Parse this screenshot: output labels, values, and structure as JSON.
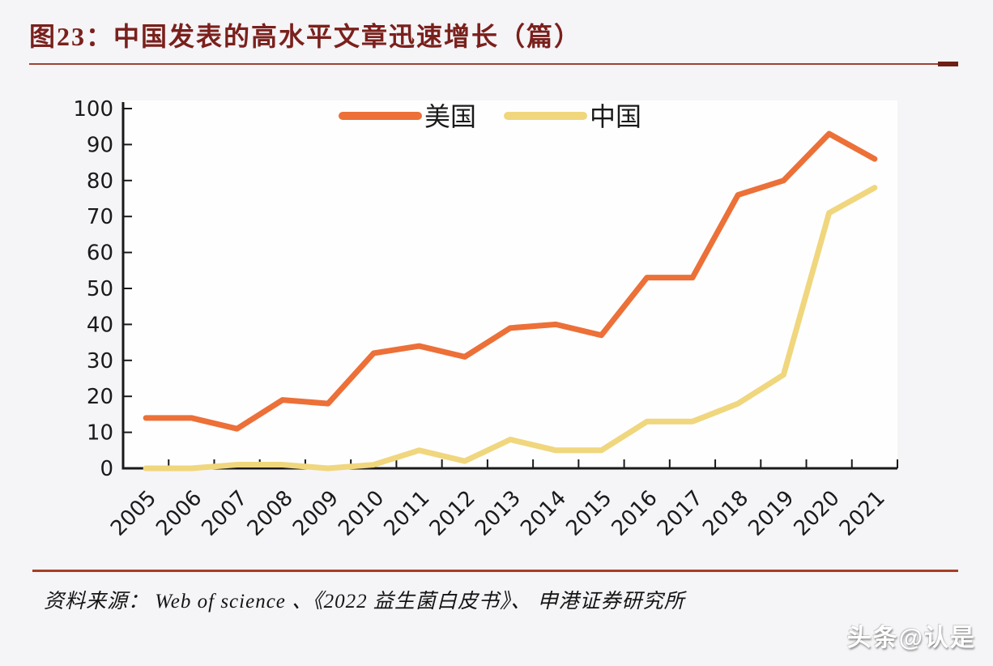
{
  "title": "图23：中国发表的高水平文章迅速增长（篇）",
  "source_note": "资料来源： Web of science 、《2022 益生菌白皮书》、 申港证券研究所",
  "watermark": "头条@认是",
  "colors": {
    "title_text": "#7A201C",
    "top_rule": "#9A4433",
    "top_rule_end": "#6F1F15",
    "bottom_rule": "#A73E22",
    "axis": "#1A1A1A",
    "page_bg": "#F5F4F7",
    "plot_bg": "#FEFEFE",
    "usa_line": "#EC7038",
    "china_line": "#F0D67D"
  },
  "chart_data": {
    "type": "line",
    "title": "图23：中国发表的高水平文章迅速增长（篇）",
    "categories": [
      "2005",
      "2006",
      "2007",
      "2008",
      "2009",
      "2010",
      "2011",
      "2012",
      "2013",
      "2014",
      "2015",
      "2016",
      "2017",
      "2018",
      "2019",
      "2020",
      "2021"
    ],
    "series": [
      {
        "name": "美国",
        "color": "#EC7038",
        "values": [
          14,
          14,
          11,
          19,
          18,
          32,
          34,
          31,
          39,
          40,
          37,
          53,
          53,
          76,
          80,
          93,
          86
        ]
      },
      {
        "name": "中国",
        "color": "#F0D67D",
        "values": [
          0,
          0,
          1,
          1,
          0,
          1,
          5,
          2,
          8,
          5,
          5,
          13,
          13,
          18,
          26,
          71,
          78
        ]
      }
    ],
    "xlabel": "",
    "ylabel": "",
    "ylim": [
      0,
      100
    ],
    "y_tick_step": 10,
    "grid": false,
    "legend_position": "top-center",
    "tick_direction": "in",
    "x_label_rotation": -45
  }
}
